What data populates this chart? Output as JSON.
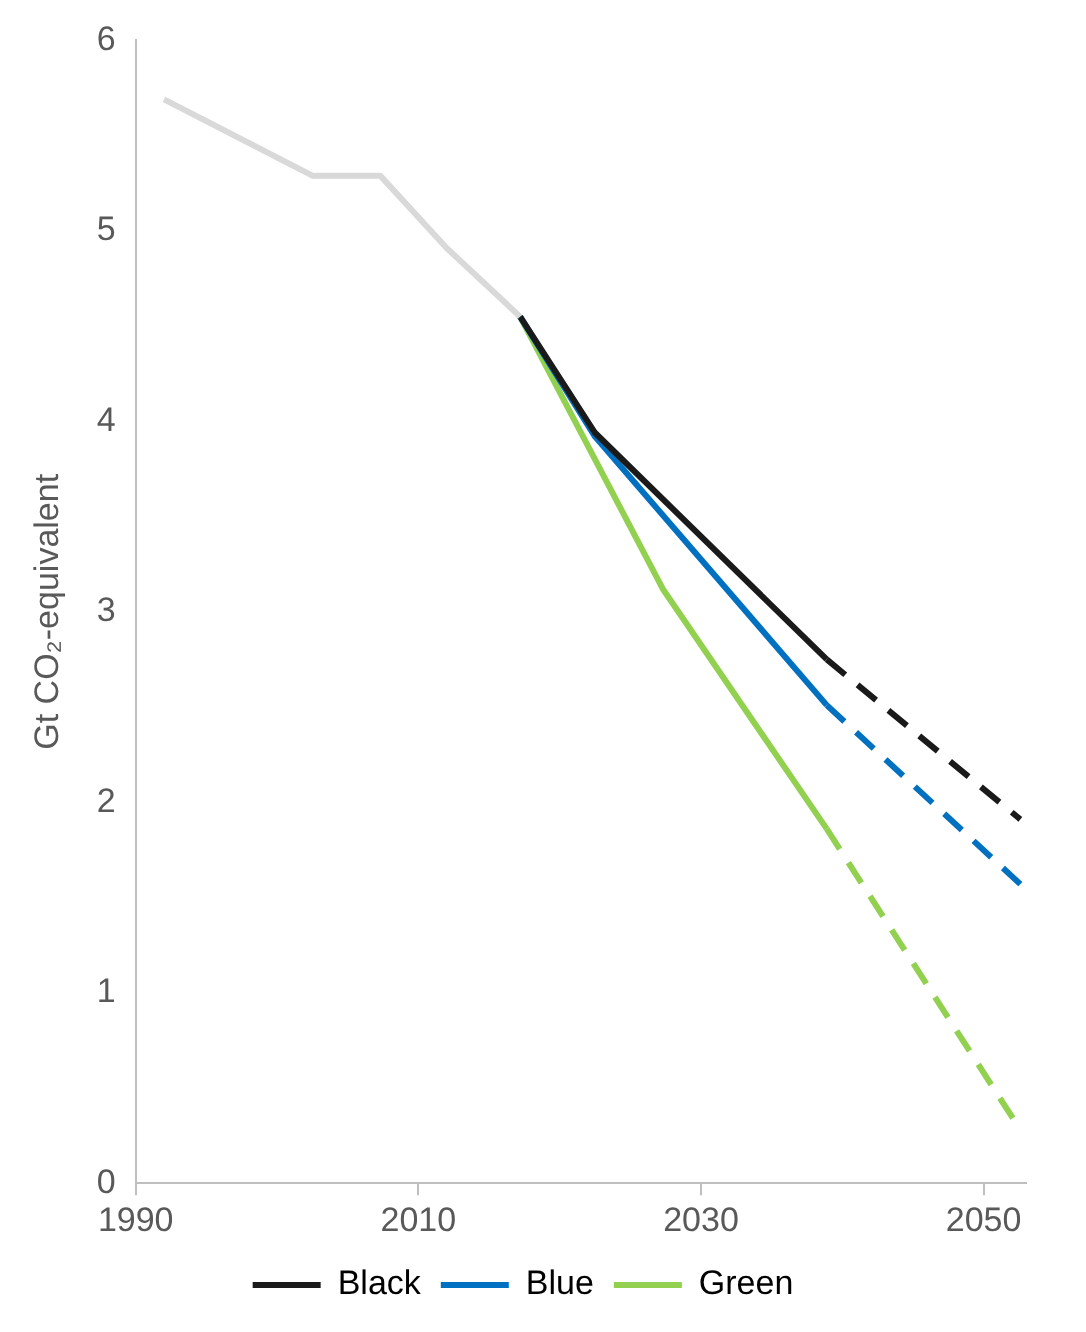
{
  "chart_data": {
    "type": "line",
    "ylabel": "Gt CO₂-equivalent",
    "xlim": [
      1990,
      2053
    ],
    "xticks": [
      1990,
      2010,
      2030,
      2050
    ],
    "ylim": [
      0,
      6
    ],
    "yticks": [
      0,
      1,
      2,
      3,
      4,
      5,
      6
    ],
    "grid": false,
    "legend": "bottom",
    "marker": "none",
    "series": [
      {
        "color": "#d9d9d9",
        "x": [
          1992,
          2002.5,
          2007.3,
          2012,
          2017.2
        ],
        "values": [
          5.69,
          5.29,
          5.29,
          4.91,
          4.55
        ]
      },
      {
        "name": "Black",
        "color": "#1a1a1a",
        "x": [
          2017.2,
          2022.5,
          2038.9
        ],
        "values": [
          4.55,
          3.94,
          2.75
        ]
      },
      {
        "name": "Blue",
        "color": "#0070c0",
        "x": [
          2017.2,
          2022.5,
          2038.9
        ],
        "values": [
          4.55,
          3.92,
          2.51
        ]
      },
      {
        "name": "Green",
        "color": "#92d050",
        "x": [
          2017.2,
          2022.5,
          2027.3,
          2038.9
        ],
        "values": [
          4.55,
          3.8,
          3.12,
          1.86
        ]
      },
      {
        "color": "#1a1a1a",
        "line_style": "dashed",
        "x": [
          2038.9,
          2052.6
        ],
        "values": [
          2.75,
          1.91
        ]
      },
      {
        "color": "#0070c0",
        "line_style": "dashed",
        "x": [
          2038.9,
          2052.6
        ],
        "values": [
          2.51,
          1.57
        ]
      },
      {
        "color": "#92d050",
        "line_style": "dashed",
        "x": [
          2038.9,
          2052.6
        ],
        "values": [
          1.86,
          0.28
        ]
      }
    ]
  }
}
